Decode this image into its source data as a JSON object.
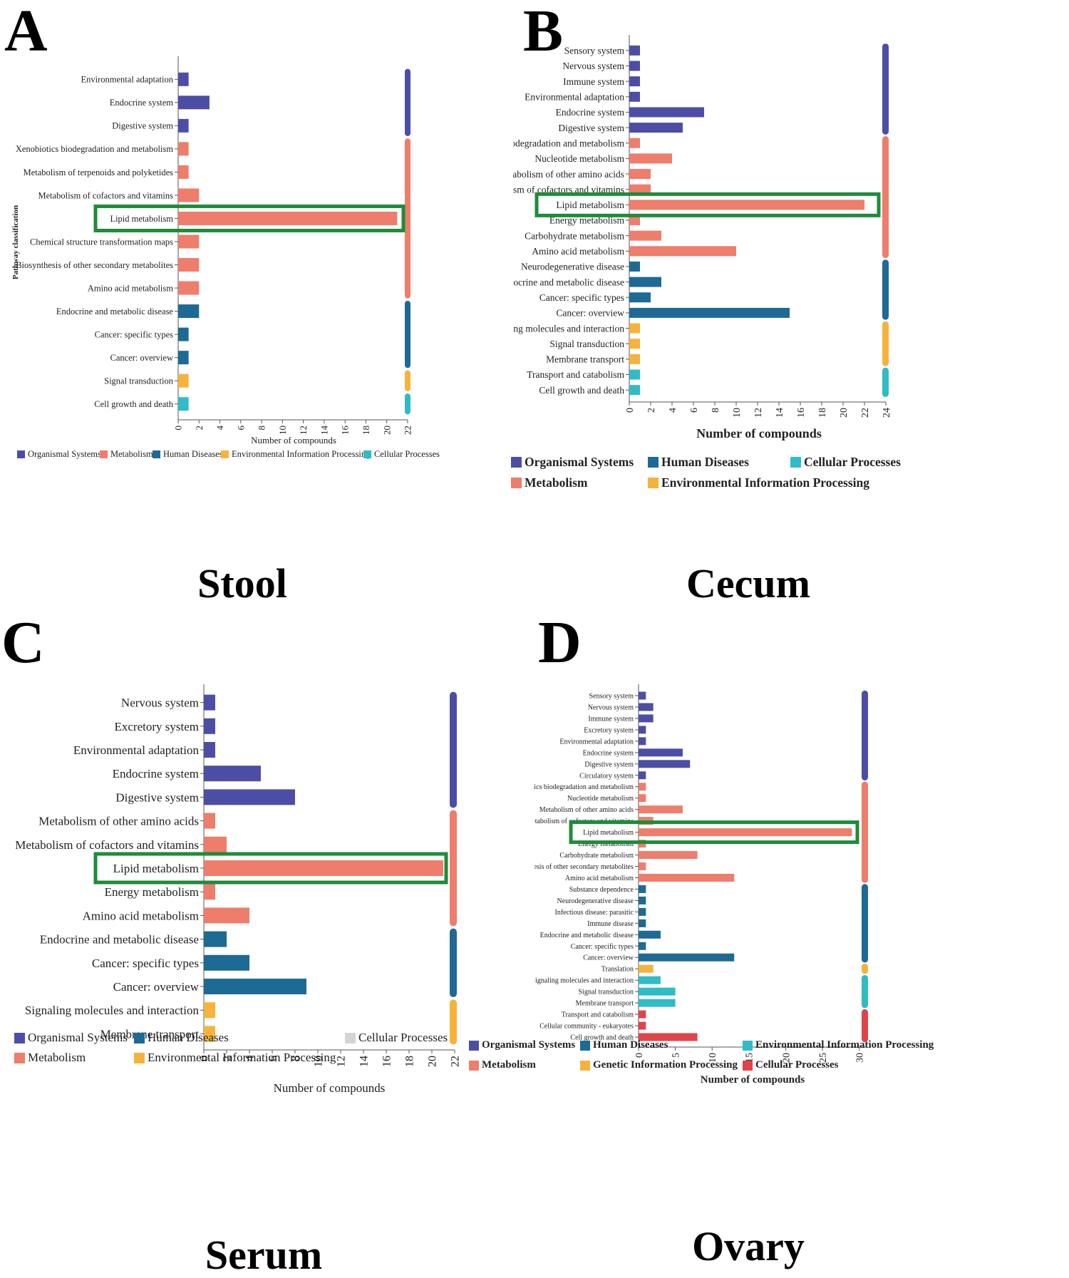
{
  "colors": {
    "Organismal Systems": "#4c4ea6",
    "Metabolism": "#ee7d6b",
    "Human Diseases": "#1d6a94",
    "Environmental Information Processing": "#f5b33c",
    "Cellular Processes": "#2fbcc6",
    "Genetic Information Processing": "#f5b33c",
    "highlight": "#1e8c3a"
  },
  "panels": [
    {
      "letter": "A",
      "caption": "Stool",
      "legend": [
        "Organismal Systems",
        "Metabolism",
        "Human Diseases",
        "Environmental Information Processing",
        "Cellular Processes"
      ],
      "chart_data": {
        "type": "bar",
        "orientation": "horizontal",
        "xlabel": "Number of compounds",
        "ylabel": "Pathway classification",
        "xlim": [
          0,
          22
        ],
        "xticks": [
          "0",
          "2",
          "4",
          "6",
          "8",
          "10",
          "12",
          "14",
          "16",
          "18",
          "20",
          "22"
        ],
        "highlight": "Lipid metabolism",
        "categories": [
          "Environmental adaptation",
          "Endocrine system",
          "Digestive system",
          "Xenobiotics biodegradation and metabolism",
          "Metabolism of terpenoids and polyketides",
          "Metabolism of cofactors and vitamins",
          "Lipid metabolism",
          "Chemical structure transformation maps",
          "Biosynthesis of other secondary metabolites",
          "Amino acid metabolism",
          "Endocrine and metabolic disease",
          "Cancer: specific types",
          "Cancer: overview",
          "Signal transduction",
          "Cell growth and death"
        ],
        "values": [
          1,
          3,
          1,
          1,
          1,
          2,
          21,
          2,
          2,
          2,
          2,
          1,
          1,
          1,
          1
        ],
        "groups": [
          "Organismal Systems",
          "Organismal Systems",
          "Organismal Systems",
          "Metabolism",
          "Metabolism",
          "Metabolism",
          "Metabolism",
          "Metabolism",
          "Metabolism",
          "Metabolism",
          "Human Diseases",
          "Human Diseases",
          "Human Diseases",
          "Environmental Information Processing",
          "Cellular Processes"
        ]
      }
    },
    {
      "letter": "B",
      "caption": "Cecum",
      "legend": [
        "Organismal Systems",
        "Human Diseases",
        "Cellular Processes",
        "Metabolism",
        "Environmental Information Processing"
      ],
      "chart_data": {
        "type": "bar",
        "orientation": "horizontal",
        "xlabel": "Number of compounds",
        "ylabel": "",
        "xlim": [
          0,
          24
        ],
        "xticks": [
          "0",
          "2",
          "4",
          "6",
          "8",
          "10",
          "12",
          "14",
          "16",
          "18",
          "20",
          "22",
          "24"
        ],
        "highlight": "Lipid metabolism",
        "categories": [
          "Sensory system",
          "Nervous system",
          "Immune system",
          "Environmental adaptation",
          "Endocrine system",
          "Digestive system",
          "Xenobiotics biodegradation and metabolism",
          "Nucleotide metabolism",
          "Metabolism of other amino acids",
          "Metabolism of cofactors and vitamins",
          "Lipid metabolism",
          "Energy metabolism",
          "Carbohydrate metabolism",
          "Amino acid metabolism",
          "Neurodegenerative disease",
          "Endocrine and metabolic disease",
          "Cancer: specific types",
          "Cancer: overview",
          "Signaling molecules and interaction",
          "Signal transduction",
          "Membrane transport",
          "Transport and catabolism",
          "Cell growth and death"
        ],
        "values": [
          1,
          1,
          1,
          1,
          7,
          5,
          1,
          4,
          2,
          2,
          22,
          1,
          3,
          10,
          1,
          3,
          2,
          15,
          1,
          1,
          1,
          1,
          1
        ],
        "groups": [
          "Organismal Systems",
          "Organismal Systems",
          "Organismal Systems",
          "Organismal Systems",
          "Organismal Systems",
          "Organismal Systems",
          "Metabolism",
          "Metabolism",
          "Metabolism",
          "Metabolism",
          "Metabolism",
          "Metabolism",
          "Metabolism",
          "Metabolism",
          "Human Diseases",
          "Human Diseases",
          "Human Diseases",
          "Human Diseases",
          "Environmental Information Processing",
          "Environmental Information Processing",
          "Environmental Information Processing",
          "Cellular Processes",
          "Cellular Processes"
        ]
      }
    },
    {
      "letter": "C",
      "caption": "Serum",
      "legend": [
        "Organismal Systems",
        "Human Diseases",
        "Cellular Processes",
        "Metabolism",
        "Environmental Information Processing"
      ],
      "legend_overrides": {
        "Cellular Processes": "#d4d4d4"
      },
      "chart_data": {
        "type": "bar",
        "orientation": "horizontal",
        "xlabel": "Number of compounds",
        "ylabel": "",
        "xlim": [
          0,
          22
        ],
        "xticks": [
          "0",
          "2",
          "4",
          "6",
          "8",
          "10",
          "12",
          "14",
          "16",
          "18",
          "20",
          "22"
        ],
        "highlight": "Lipid metabolism",
        "categories": [
          "Nervous system",
          "Excretory system",
          "Environmental adaptation",
          "Endocrine system",
          "Digestive system",
          "Metabolism of other amino acids",
          "Metabolism of cofactors and vitamins",
          "Lipid metabolism",
          "Energy metabolism",
          "Amino acid metabolism",
          "Endocrine and metabolic disease",
          "Cancer: specific types",
          "Cancer: overview",
          "Signaling molecules and interaction",
          "Membrane transport"
        ],
        "values": [
          1,
          1,
          1,
          5,
          8,
          1,
          2,
          21,
          1,
          4,
          2,
          4,
          9,
          1,
          1
        ],
        "groups": [
          "Organismal Systems",
          "Organismal Systems",
          "Organismal Systems",
          "Organismal Systems",
          "Organismal Systems",
          "Metabolism",
          "Metabolism",
          "Metabolism",
          "Metabolism",
          "Metabolism",
          "Human Diseases",
          "Human Diseases",
          "Human Diseases",
          "Environmental Information Processing",
          "Environmental Information Processing"
        ]
      }
    },
    {
      "letter": "D",
      "caption": "Ovary",
      "legend": [
        "Organismal Systems",
        "Human Diseases",
        "Environmental Information Processing",
        "Metabolism",
        "Genetic Information Processing",
        "Cellular Processes"
      ],
      "legend_overrides": {
        "Environmental Information Processing": "#2fbcc6",
        "Cellular Processes": "#e0434a"
      },
      "chart_data": {
        "type": "bar",
        "orientation": "horizontal",
        "xlabel": "Number of compounds",
        "ylabel": "",
        "xlim": [
          0,
          31
        ],
        "xticks": [
          "0",
          "5",
          "10",
          "15",
          "20",
          "25",
          "30"
        ],
        "xtick_values": [
          0,
          5,
          10,
          15,
          20,
          25,
          30
        ],
        "highlight": "Lipid metabolism",
        "categories": [
          "Sensory system",
          "Nervous system",
          "Immune system",
          "Excretory system",
          "Environmental adaptation",
          "Endocrine system",
          "Digestive system",
          "Circulatory system",
          "Xenobiotics biodegradation and metabolism",
          "Nucleotide metabolism",
          "Metabolism of other amino acids",
          "Metabolism of cofactors and vitamins",
          "Lipid metabolism",
          "Energy metabolism",
          "Carbohydrate metabolism",
          "Biosynthesis of other secondary metabolites",
          "Amino acid metabolism",
          "Substance dependence",
          "Neurodegenerative disease",
          "Infectious disease: parasitic",
          "Immune disease",
          "Endocrine and metabolic disease",
          "Cancer: specific types",
          "Cancer: overview",
          "Translation",
          "Signaling molecules and interaction",
          "Signal transduction",
          "Membrane transport",
          "Transport and catabolism",
          "Cellular community - eukaryotes",
          "Cell growth and death"
        ],
        "values": [
          1,
          2,
          2,
          1,
          1,
          6,
          7,
          1,
          1,
          1,
          6,
          2,
          29,
          1,
          8,
          1,
          13,
          1,
          1,
          1,
          1,
          3,
          1,
          13,
          2,
          3,
          5,
          5,
          1,
          1,
          8
        ],
        "groups": [
          "Organismal Systems",
          "Organismal Systems",
          "Organismal Systems",
          "Organismal Systems",
          "Organismal Systems",
          "Organismal Systems",
          "Organismal Systems",
          "Organismal Systems",
          "Metabolism",
          "Metabolism",
          "Metabolism",
          "Metabolism",
          "Metabolism",
          "Metabolism",
          "Metabolism",
          "Metabolism",
          "Metabolism",
          "Human Diseases",
          "Human Diseases",
          "Human Diseases",
          "Human Diseases",
          "Human Diseases",
          "Human Diseases",
          "Human Diseases",
          "Genetic Information Processing",
          "Environmental Information Processing",
          "Environmental Information Processing",
          "Environmental Information Processing",
          "Cellular Processes",
          "Cellular Processes",
          "Cellular Processes"
        ],
        "group_colors": {
          "Environmental Information Processing": "#2fbcc6",
          "Cellular Processes": "#e0434a"
        }
      }
    }
  ]
}
